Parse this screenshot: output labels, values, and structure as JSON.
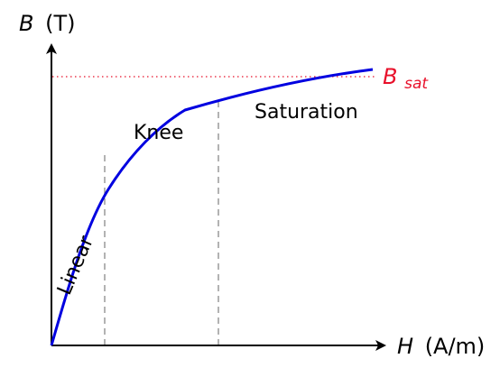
{
  "axes": {
    "y_symbol": "B",
    "y_unit": "(T)",
    "x_symbol": "H",
    "x_unit": "(A/m)"
  },
  "saturation_label": {
    "symbol": "B",
    "subscript": "sat",
    "color": "#e8102a"
  },
  "regions": {
    "linear": "Linear",
    "knee": "Knee",
    "saturation": "Saturation"
  },
  "colors": {
    "curve": "#0000e0",
    "axes": "#000000",
    "guides": "#808080",
    "sat_line": "#e8102a"
  }
}
